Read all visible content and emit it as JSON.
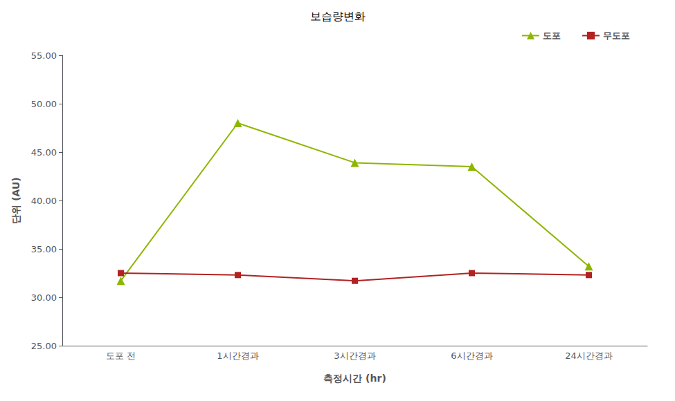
{
  "chart_data": {
    "type": "line",
    "title": "보습량변화",
    "xlabel": "측정시간 (hr)",
    "ylabel": "단위 (AU)",
    "categories": [
      "도포 전",
      "1시간경과",
      "3시간경과",
      "6시간경과",
      "24시간경과"
    ],
    "series": [
      {
        "name": "도포",
        "color": "#8DB600",
        "marker": "triangle",
        "values": [
          31.7,
          48.0,
          43.9,
          43.5,
          33.2
        ]
      },
      {
        "name": "무도포",
        "color": "#B22222",
        "marker": "square",
        "values": [
          32.5,
          32.3,
          31.7,
          32.5,
          32.3
        ]
      }
    ],
    "ylim": [
      25.0,
      55.0
    ],
    "yticks": [
      {
        "value": 25.0,
        "label": "25.00"
      },
      {
        "value": 30.0,
        "label": "30.00"
      },
      {
        "value": 35.0,
        "label": "35.00"
      },
      {
        "value": 40.0,
        "label": "40.00"
      },
      {
        "value": 45.0,
        "label": "45.00"
      },
      {
        "value": 50.0,
        "label": "50.00"
      },
      {
        "value": 55.0,
        "label": "55.00"
      }
    ],
    "grid": false,
    "legend": "upper right"
  }
}
